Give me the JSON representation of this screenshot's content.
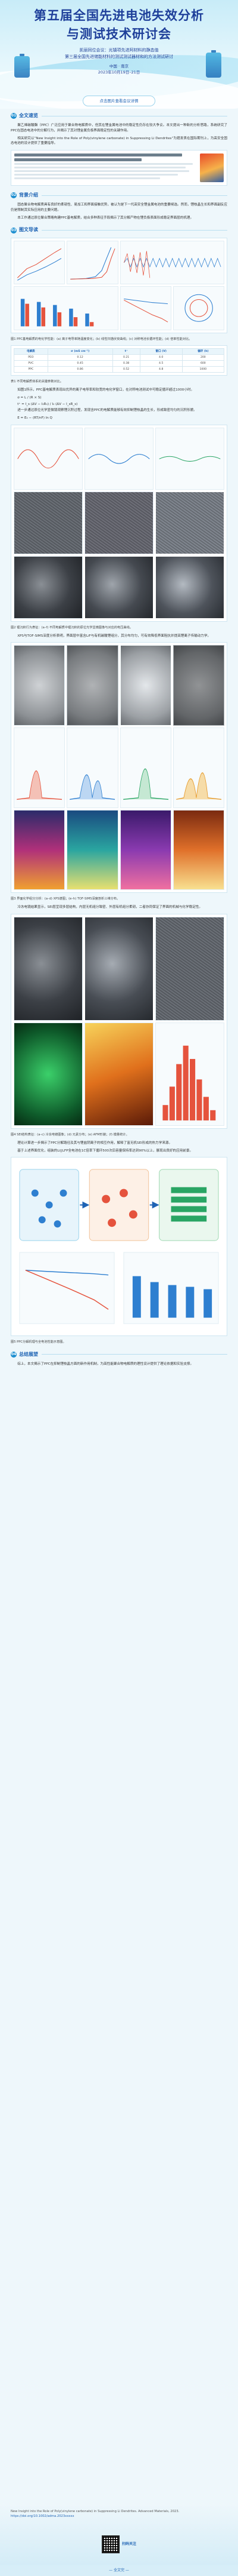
{
  "banner": {
    "title_line1": "第五届全国先进电池失效分析",
    "title_line2": "与测试技术研讨会",
    "sub_line1": "凯丽同位会议：光镇项先进阿材料的静态值",
    "sub_line2": "第三届全国先进储能材料的测试测试器材和的方法测试研讨",
    "location": "中国 · 南京",
    "date": "2023年10月19日–21日",
    "register_label": "点击图片查看会议详情"
  },
  "sections": {
    "s1": {
      "num": "01",
      "title": "全文速览"
    },
    "s2": {
      "num": "02",
      "title": "背景介绍"
    },
    "s3": {
      "num": "03",
      "title": "图文导读"
    },
    "s4": {
      "num": "04",
      "title": "总结展望"
    }
  },
  "paragraphs": {
    "p1": "聚乙烯碳酸酯（PPC）广泛应用于聚合物电解质中，但其在锂金属电池中的稳定性仍存在较大争议。本文提出一种新的分析思路，系统研究了PPC在固态电池中的分解行为，并揭示了其对锂金属负极界面稳定性的关键作用。",
    "p2": "相关研究以“New Insight into the Role of Poly(vinylene carbonate) in Suppressing Li Dendrites”为题发表在国际期刊上，为高安全固态电池的设计提供了重要指导。",
    "p3": "固态聚合物电解质具有良好的柔韧性、易加工和界面接触优势，被认为是下一代高安全锂金属电池的重要候选。然而，锂枝晶生长和界面副反应仍是限制其实际应用的主要问题。",
    "p4": "本工作通过原位聚合策略构建PPC基电解质，结合多种表征手段揭示了其分解产物在锂负极表面形成稳定界面层的机理。",
    "p5": "如图1所示，PPC基电解质表现出优异的离子电导率和较宽的电化学窗口，在对称电池测试中可稳定循环超过1000小时。",
    "p6": "进一步通过原位光学显微镜观察锂沉积过程，发现含PPC的电解质能够有效抑制锂枝晶的生长，形成致密均匀的沉积形貌。",
    "p7": "XPS与TOF-SIMS深度分析表明，界面层中富含LiF与有机碳酸锂组分，其分布均匀，可有效降低界面阻抗并提高锂离子传输动力学。",
    "p8": "冷冻电镜结果显示，SEI层呈现多层结构，内层无机组分致密、外层有机组分柔韧，二者协同保证了界面的机械与化学稳定性。",
    "p9": "理论计算进一步揭示了PPC分解路径及其与锂盐阴离子的相互作用，解释了富无机SEI形成的热力学来源。",
    "p10": "基于上述界面优化，组装的Li||LFP全电池在1C倍率下循环500次后容量保持率达到90%以上，展现出良好的应用前景。",
    "p11": "综上，本文揭示了PPC在抑制锂枝晶方面的新作用机制，为高性能聚合物电解质的理性设计提供了理论依据和实验支撑。"
  },
  "captions": {
    "c1": "图1 PPC基电解质的电化学性能：(a) 离子电导率随温度变化；(b) 线性扫描伏安曲线；(c) 对称电池长循环性能；(d) 倍率性能对比。",
    "c2": "表1 不同电解质体系的关键参数对比。",
    "c3": "图2 锂沉积行为表征：(a–f) 不同电解质中锂沉积的原位光学显微图像与对应的电压曲线。",
    "c4": "图3 界面化学组分分析：(a–d) XPS谱图；(e–h) TOF-SIMS深度剖析三维分布。",
    "c5": "图4 SEI结构表征：(a–c) 冷冻电镜图像；(d) 元素分布；(e) AFM形貌；(f) 模量统计。",
    "c6": "图5 PPC分解机理与全电池性能示意图。"
  },
  "equations": {
    "e1": "σ = L / (R × S)",
    "e2": "t⁺ = I_s (ΔV − I₀R₀) / I₀ (ΔV − I_sR_s)",
    "e3": "E = E₀ − (RT/nF) ln Q"
  },
  "table": {
    "headers": [
      "电解质",
      "σ (mS cm⁻¹)",
      "t⁺",
      "窗口 (V)",
      "循环 (h)"
    ],
    "rows": [
      [
        "PEO",
        "0.12",
        "0.21",
        "4.0",
        "200"
      ],
      [
        "PVC",
        "0.45",
        "0.38",
        "4.5",
        "600"
      ],
      [
        "PPC",
        "0.86",
        "0.52",
        "4.8",
        "1000"
      ]
    ]
  },
  "footer": {
    "reference": "New Insight into the Role of Poly(vinylene carbonate) in Suppressing Li Dendrites. Advanced Materials, 2023.",
    "doi": "https://doi.org/10.1002/adma.2023xxxxx",
    "qr_label": "扫码关注",
    "bottom_text": "— 全文完 —"
  },
  "colors": {
    "accent": "#1e63b4",
    "title": "#1e3f9a",
    "bg": "#eef7fb"
  }
}
